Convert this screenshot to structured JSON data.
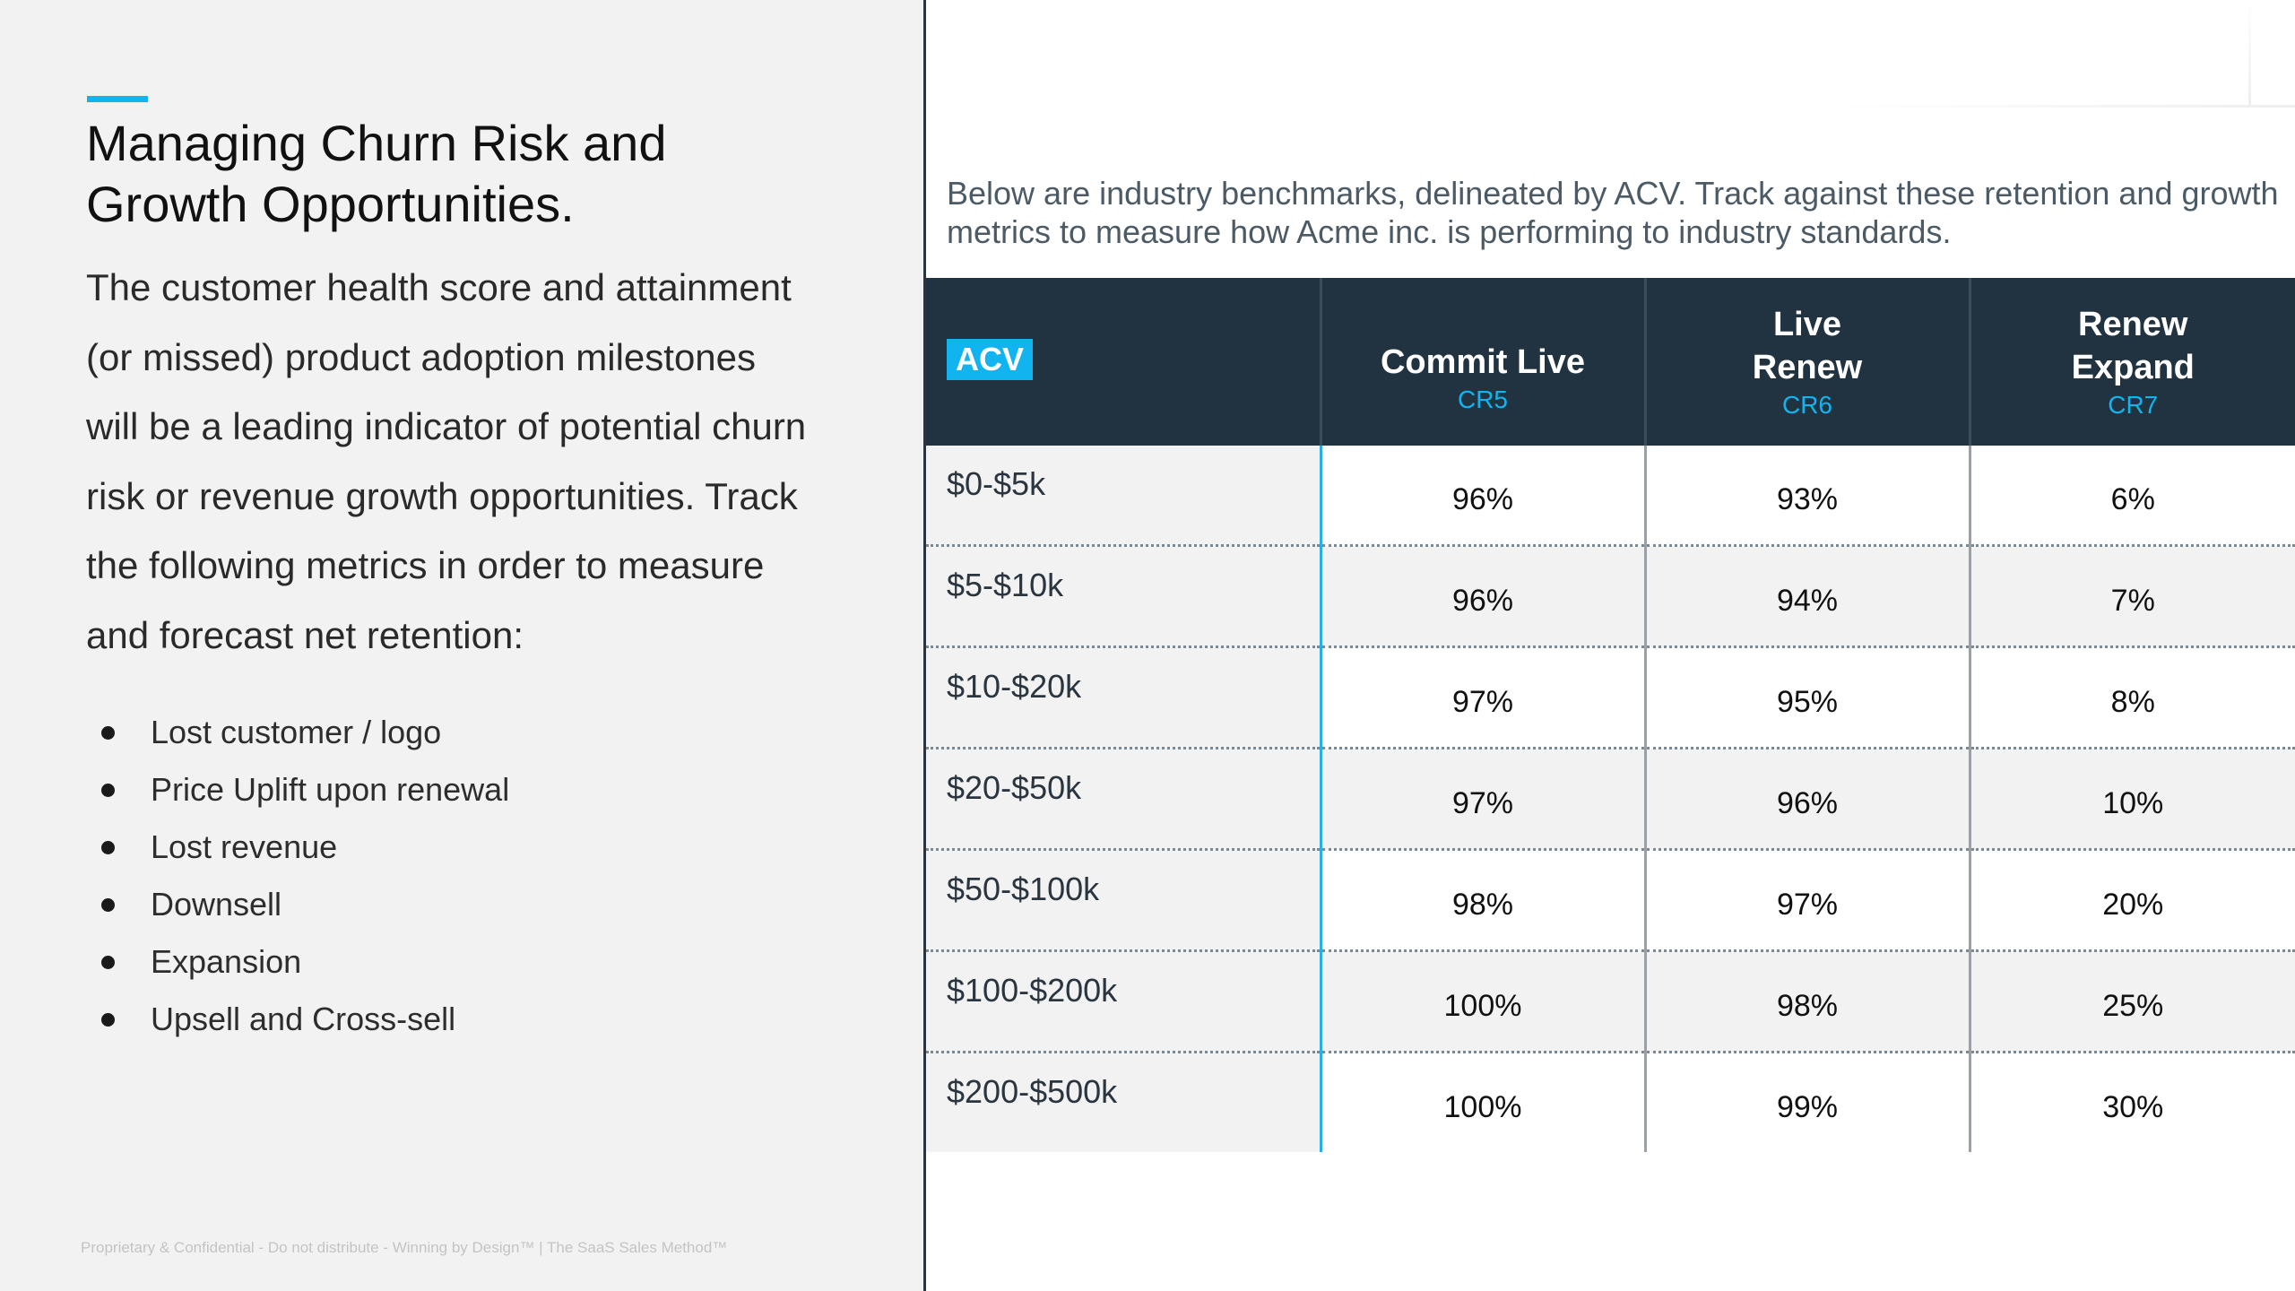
{
  "left": {
    "title_lines": [
      "Managing Churn Risk and",
      "Growth Opportunities."
    ],
    "body_lines": [
      "The customer health score and attainment",
      "(or missed) product adoption milestones",
      "will be a leading indicator of potential churn",
      "risk or revenue growth opportunities. Track",
      "the following metrics in order to measure",
      "and forecast net retention:"
    ],
    "bullets": [
      "Lost customer / logo",
      "Price Uplift upon renewal",
      "Lost revenue",
      "Downsell",
      "Expansion",
      "Upsell and Cross-sell"
    ],
    "footer": "Proprietary & Confidential - Do not distribute - Winning by Design™  |  The SaaS Sales Method™"
  },
  "right": {
    "intro_lines": [
      "Below are industry benchmarks, delineated by ACV. Track against these retention and growth",
      "metrics to measure how Acme inc. is performing to industry standards."
    ],
    "table": {
      "acv_label": "ACV",
      "columns": [
        {
          "name_lines": [
            "Commit Live"
          ],
          "code": "CR5"
        },
        {
          "name_lines": [
            "Live",
            "Renew"
          ],
          "code": "CR6"
        },
        {
          "name_lines": [
            "Renew",
            "Expand"
          ],
          "code": "CR7"
        }
      ],
      "rows": [
        {
          "acv": "$0-$5k",
          "values": [
            "96%",
            "93%",
            "6%"
          ]
        },
        {
          "acv": "$5-$10k",
          "values": [
            "96%",
            "94%",
            "7%"
          ]
        },
        {
          "acv": "$10-$20k",
          "values": [
            "97%",
            "95%",
            "8%"
          ]
        },
        {
          "acv": "$20-$50k",
          "values": [
            "97%",
            "96%",
            "10%"
          ]
        },
        {
          "acv": "$50-$100k",
          "values": [
            "98%",
            "97%",
            "20%"
          ]
        },
        {
          "acv": "$100-$200k",
          "values": [
            "100%",
            "98%",
            "25%"
          ]
        },
        {
          "acv": "$200-$500k",
          "values": [
            "100%",
            "99%",
            "30%"
          ]
        }
      ]
    }
  },
  "colors": {
    "accent": "#12b4f0",
    "header_bg": "#213340",
    "panel_bg": "#f2f2f2"
  }
}
